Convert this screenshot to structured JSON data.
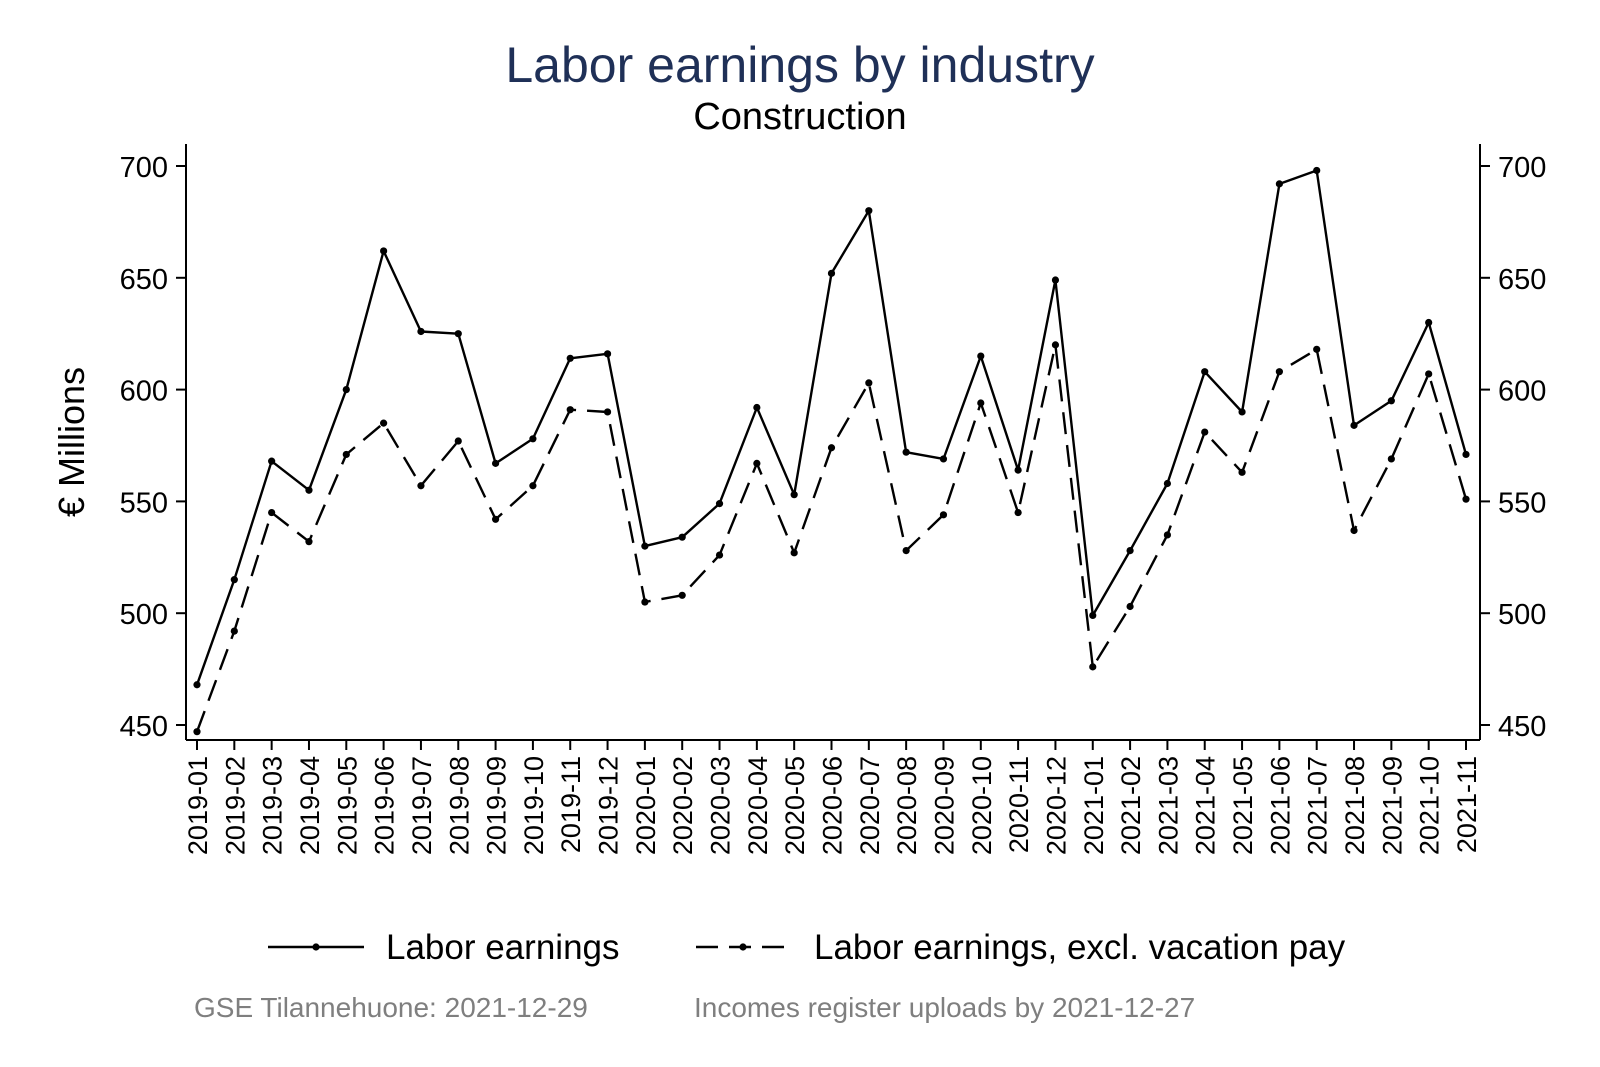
{
  "header": {
    "title": "Labor earnings by industry",
    "subtitle": "Construction"
  },
  "footer": {
    "left": "GSE Tilannehuone: 2021-12-29",
    "right": "Incomes register uploads by 2021-12-27"
  },
  "chart_data": {
    "type": "line",
    "title": "Labor earnings by industry",
    "subtitle": "Construction",
    "ylabel": "€ Millions",
    "xlabel": "",
    "ylim": [
      445,
      710
    ],
    "yticks": [
      450,
      500,
      550,
      600,
      650,
      700
    ],
    "secondary_y_axis": true,
    "legend_position": "bottom",
    "x": [
      "2019-01",
      "2019-02",
      "2019-03",
      "2019-04",
      "2019-05",
      "2019-06",
      "2019-07",
      "2019-08",
      "2019-09",
      "2019-10",
      "2019-11",
      "2019-12",
      "2020-01",
      "2020-02",
      "2020-03",
      "2020-04",
      "2020-05",
      "2020-06",
      "2020-07",
      "2020-08",
      "2020-09",
      "2020-10",
      "2020-11",
      "2020-12",
      "2021-01",
      "2021-02",
      "2021-03",
      "2021-04",
      "2021-05",
      "2021-06",
      "2021-07",
      "2021-08",
      "2021-09",
      "2021-10",
      "2021-11"
    ],
    "series": [
      {
        "name": "Labor earnings",
        "style": "solid",
        "values": [
          468,
          515,
          568,
          555,
          600,
          662,
          626,
          625,
          567,
          578,
          614,
          616,
          530,
          534,
          549,
          592,
          553,
          652,
          680,
          572,
          569,
          615,
          564,
          649,
          499,
          528,
          558,
          608,
          590,
          692,
          698,
          584,
          595,
          630,
          571
        ]
      },
      {
        "name": "Labor earnings, excl. vacation pay",
        "style": "dashed",
        "values": [
          447,
          492,
          545,
          532,
          571,
          585,
          557,
          577,
          542,
          557,
          591,
          590,
          505,
          508,
          526,
          567,
          527,
          574,
          603,
          528,
          544,
          594,
          545,
          620,
          476,
          503,
          535,
          581,
          563,
          608,
          618,
          537,
          569,
          607,
          551
        ]
      }
    ]
  }
}
